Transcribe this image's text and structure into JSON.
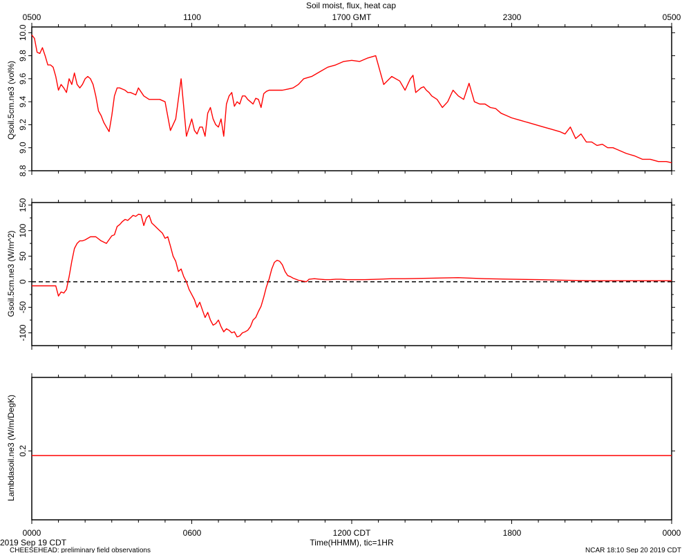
{
  "title": "Soil moist, flux, heat cap",
  "top_axis_label": "1700 GMT",
  "top_axis_ticks": [
    "0500",
    "1100",
    "1700 GMT",
    "2300",
    "0500"
  ],
  "bottom_axis_ticks": [
    "0000",
    "0600",
    "1200 CDT",
    "1800",
    "0000"
  ],
  "xlabel": "Time(HHMM), tic=1HR",
  "footer": {
    "date_left": "2019 Sep 19 CDT",
    "project": "CHEESEHEAD: preliminary field observations",
    "right": "NCAR 18:10 Sep 20 2019 CDT"
  },
  "colors": {
    "series": "#ff0000",
    "axes": "#000000",
    "zero_line": "#000000"
  },
  "chart_data": [
    {
      "type": "line",
      "ylabel": "Qsoil.5cm.ne3 (vol%)",
      "xlim": [
        0,
        24
      ],
      "ylim": [
        8.8,
        10.05
      ],
      "yticks": [
        8.8,
        9.0,
        9.2,
        9.4,
        9.6,
        9.8,
        10.0
      ],
      "ytick_labels": [
        "8.8",
        "9.0",
        "9.2",
        "9.4",
        "9.6",
        "9.8",
        "10.0"
      ],
      "series": [
        {
          "x": [
            0,
            0.1,
            0.2,
            0.3,
            0.4,
            0.5,
            0.6,
            0.7,
            0.8,
            0.9,
            1.0,
            1.1,
            1.2,
            1.3,
            1.4,
            1.5,
            1.6,
            1.7,
            1.8,
            1.9,
            2.0,
            2.1,
            2.2,
            2.3,
            2.4,
            2.5,
            2.6,
            2.7,
            2.8,
            2.9,
            3.0,
            3.1,
            3.2,
            3.3,
            3.4,
            3.5,
            3.6,
            3.7,
            3.8,
            3.9,
            4.0,
            4.2,
            4.4,
            4.6,
            4.8,
            5.0,
            5.2,
            5.4,
            5.6,
            5.8,
            6.0,
            6.1,
            6.2,
            6.3,
            6.4,
            6.5,
            6.6,
            6.7,
            6.8,
            6.9,
            7.0,
            7.1,
            7.2,
            7.3,
            7.4,
            7.5,
            7.6,
            7.7,
            7.8,
            7.9,
            8.0,
            8.1,
            8.2,
            8.3,
            8.4,
            8.5,
            8.6,
            8.7,
            8.8,
            8.9,
            9.0,
            9.2,
            9.4,
            9.6,
            9.8,
            10.0,
            10.2,
            10.5,
            10.8,
            11.1,
            11.4,
            11.7,
            12.0,
            12.3,
            12.6,
            12.9,
            13.2,
            13.5,
            13.8,
            14.0,
            14.1,
            14.2,
            14.3,
            14.4,
            14.5,
            14.6,
            14.7,
            14.8,
            14.9,
            15.0,
            15.2,
            15.4,
            15.6,
            15.8,
            16.0,
            16.2,
            16.4,
            16.6,
            16.8,
            17.0,
            17.2,
            17.4,
            17.6,
            17.8,
            18.0,
            18.3,
            18.6,
            18.9,
            19.2,
            19.5,
            19.8,
            20.0,
            20.2,
            20.4,
            20.6,
            20.8,
            21.0,
            21.2,
            21.4,
            21.6,
            21.8,
            22.0,
            22.3,
            22.6,
            22.9,
            23.2,
            23.5,
            23.8,
            24.0
          ],
          "y": [
            9.98,
            9.95,
            9.83,
            9.82,
            9.87,
            9.8,
            9.72,
            9.72,
            9.7,
            9.62,
            9.5,
            9.55,
            9.52,
            9.48,
            9.6,
            9.55,
            9.65,
            9.55,
            9.52,
            9.55,
            9.6,
            9.62,
            9.6,
            9.55,
            9.45,
            9.32,
            9.28,
            9.22,
            9.18,
            9.14,
            9.28,
            9.45,
            9.52,
            9.52,
            9.51,
            9.5,
            9.48,
            9.48,
            9.47,
            9.46,
            9.52,
            9.45,
            9.42,
            9.42,
            9.42,
            9.4,
            9.15,
            9.25,
            9.6,
            9.1,
            9.25,
            9.15,
            9.12,
            9.18,
            9.18,
            9.1,
            9.3,
            9.35,
            9.25,
            9.2,
            9.18,
            9.25,
            9.1,
            9.38,
            9.45,
            9.48,
            9.36,
            9.4,
            9.38,
            9.45,
            9.45,
            9.42,
            9.4,
            9.38,
            9.43,
            9.42,
            9.35,
            9.47,
            9.49,
            9.5,
            9.5,
            9.5,
            9.5,
            9.51,
            9.52,
            9.55,
            9.6,
            9.62,
            9.66,
            9.7,
            9.72,
            9.75,
            9.76,
            9.75,
            9.78,
            9.8,
            9.55,
            9.62,
            9.58,
            9.5,
            9.55,
            9.6,
            9.63,
            9.48,
            9.5,
            9.52,
            9.53,
            9.5,
            9.48,
            9.45,
            9.42,
            9.35,
            9.4,
            9.5,
            9.45,
            9.42,
            9.56,
            9.4,
            9.38,
            9.38,
            9.35,
            9.34,
            9.3,
            9.28,
            9.26,
            9.24,
            9.22,
            9.2,
            9.18,
            9.16,
            9.14,
            9.12,
            9.18,
            9.08,
            9.12,
            9.05,
            9.05,
            9.02,
            9.03,
            9.0,
            9.0,
            8.98,
            8.95,
            8.93,
            8.9,
            8.9,
            8.88,
            8.88,
            8.87
          ]
        }
      ]
    },
    {
      "type": "line",
      "ylabel": "Gsoil.5cm.ne3 (W/m^2)",
      "xlim": [
        0,
        24
      ],
      "ylim": [
        -125,
        155
      ],
      "yticks": [
        -100,
        -50,
        0,
        50,
        100,
        150
      ],
      "ytick_labels": [
        "-100",
        "-50",
        "0",
        "50",
        "100",
        "150"
      ],
      "zero_line": true,
      "series": [
        {
          "x": [
            0,
            0.5,
            0.9,
            1.0,
            1.1,
            1.2,
            1.3,
            1.4,
            1.5,
            1.6,
            1.7,
            1.8,
            1.9,
            2.0,
            2.2,
            2.4,
            2.6,
            2.8,
            3.0,
            3.1,
            3.2,
            3.3,
            3.4,
            3.5,
            3.6,
            3.7,
            3.8,
            3.9,
            4.0,
            4.1,
            4.2,
            4.3,
            4.4,
            4.5,
            4.6,
            4.7,
            4.8,
            4.9,
            5.0,
            5.1,
            5.2,
            5.3,
            5.4,
            5.5,
            5.6,
            5.7,
            5.8,
            5.9,
            6.0,
            6.1,
            6.2,
            6.3,
            6.4,
            6.5,
            6.6,
            6.7,
            6.8,
            6.9,
            7.0,
            7.1,
            7.2,
            7.3,
            7.4,
            7.5,
            7.6,
            7.7,
            7.8,
            7.9,
            8.0,
            8.1,
            8.2,
            8.3,
            8.4,
            8.5,
            8.6,
            8.7,
            8.8,
            8.9,
            9.0,
            9.1,
            9.2,
            9.3,
            9.4,
            9.5,
            9.6,
            9.7,
            9.8,
            9.9,
            10.0,
            10.1,
            10.2,
            10.3,
            10.4,
            10.6,
            10.8,
            11.0,
            11.2,
            11.4,
            11.6,
            11.8,
            12.0,
            12.5,
            13.0,
            13.5,
            14.0,
            15.0,
            16.0,
            17.0,
            18.0,
            19.0,
            20.0,
            21.0,
            22.0,
            23.0,
            24.0
          ],
          "y": [
            -8,
            -8,
            -8,
            -28,
            -20,
            -22,
            -15,
            10,
            40,
            65,
            75,
            80,
            80,
            82,
            88,
            88,
            80,
            75,
            90,
            92,
            108,
            112,
            118,
            122,
            120,
            125,
            130,
            128,
            132,
            131,
            110,
            125,
            130,
            115,
            110,
            105,
            100,
            95,
            85,
            88,
            70,
            50,
            40,
            20,
            25,
            10,
            0,
            -15,
            -25,
            -35,
            -50,
            -40,
            -55,
            -70,
            -60,
            -75,
            -85,
            -82,
            -75,
            -88,
            -98,
            -92,
            -95,
            -100,
            -98,
            -108,
            -106,
            -100,
            -98,
            -95,
            -88,
            -75,
            -70,
            -58,
            -48,
            -30,
            -10,
            5,
            25,
            38,
            42,
            40,
            33,
            20,
            12,
            10,
            7,
            5,
            3,
            2,
            1,
            0,
            5,
            6,
            5,
            4,
            4,
            5,
            5,
            4,
            4,
            4,
            5,
            6,
            6,
            7,
            8,
            6,
            5,
            4,
            3,
            2,
            2,
            2,
            2
          ]
        }
      ]
    },
    {
      "type": "line",
      "ylabel": "Lambdasoil.ne3 (W/m/DegK)",
      "xlim": [
        0,
        24
      ],
      "ylim": [
        0.05,
        0.36
      ],
      "yticks": [
        0.2
      ],
      "ytick_labels": [
        "0.2"
      ],
      "series": [
        {
          "x": [
            0,
            24
          ],
          "y": [
            0.19,
            0.19
          ]
        }
      ]
    }
  ]
}
